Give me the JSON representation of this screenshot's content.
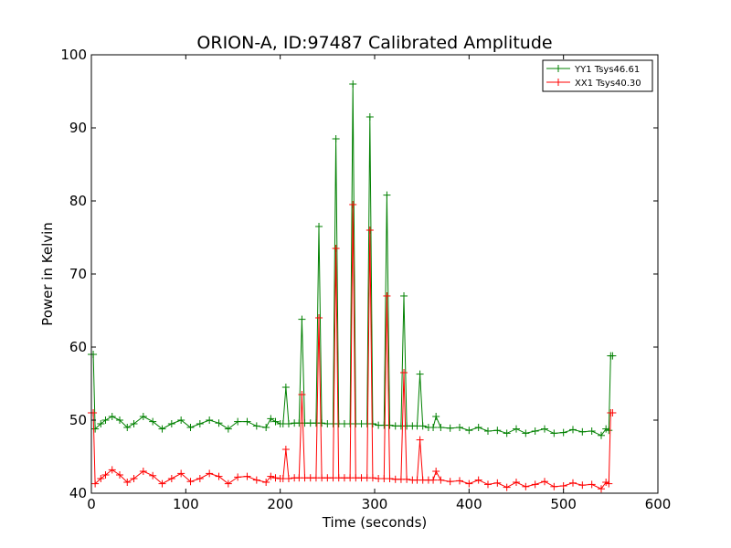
{
  "chart_data": {
    "type": "line",
    "title": "ORION-A, ID:97487 Calibrated Amplitude",
    "xlabel": "Time (seconds)",
    "ylabel": "Power in Kelvin",
    "xlim": [
      0,
      600
    ],
    "ylim": [
      40,
      100
    ],
    "xticks": [
      "0",
      "100",
      "200",
      "300",
      "400",
      "500",
      "600"
    ],
    "yticks": [
      "40",
      "50",
      "60",
      "70",
      "80",
      "90",
      "100"
    ],
    "grid": false,
    "legend_position": "top-right",
    "marker": "plus",
    "series": [
      {
        "name": "YY1 Tsys46.61",
        "color": "#008000",
        "x": [
          0,
          2,
          4,
          10,
          15,
          22,
          30,
          38,
          45,
          55,
          65,
          75,
          85,
          95,
          105,
          115,
          125,
          135,
          145,
          155,
          165,
          175,
          185,
          190,
          195,
          200,
          203,
          206,
          209,
          215,
          220,
          223,
          226,
          232,
          238,
          241,
          244,
          250,
          256,
          259,
          262,
          268,
          274,
          277,
          280,
          286,
          292,
          295,
          298,
          304,
          310,
          313,
          316,
          322,
          328,
          331,
          334,
          340,
          345,
          348,
          351,
          357,
          362,
          365,
          370,
          380,
          390,
          400,
          410,
          420,
          430,
          440,
          450,
          460,
          470,
          480,
          490,
          500,
          510,
          520,
          530,
          540,
          545,
          548,
          550,
          552
        ],
        "y": [
          59,
          59,
          48.8,
          49.5,
          50,
          50.5,
          50,
          49,
          49.5,
          50.5,
          49.8,
          48.8,
          49.5,
          50,
          49,
          49.5,
          50,
          49.6,
          48.8,
          49.8,
          49.8,
          49.2,
          49,
          50.2,
          49.8,
          49.5,
          49.5,
          54.5,
          49.5,
          49.6,
          49.6,
          63.8,
          49.6,
          49.6,
          49.6,
          76.5,
          49.6,
          49.5,
          49.5,
          88.5,
          49.5,
          49.5,
          49.5,
          96,
          49.5,
          49.5,
          49.5,
          91.5,
          49.5,
          49.3,
          49.3,
          80.8,
          49.3,
          49.2,
          49.2,
          67,
          49.2,
          49.2,
          49.2,
          56.3,
          49.2,
          49.0,
          49.0,
          50.5,
          49.0,
          48.9,
          49.0,
          48.6,
          49.0,
          48.5,
          48.6,
          48.2,
          48.8,
          48.2,
          48.5,
          48.8,
          48.2,
          48.3,
          48.7,
          48.4,
          48.5,
          47.9,
          48.8,
          48.6,
          58.8,
          58.8
        ]
      },
      {
        "name": "XX1 Tsys40.30",
        "color": "#ff0000",
        "x": [
          0,
          2,
          4,
          10,
          15,
          22,
          30,
          38,
          45,
          55,
          65,
          75,
          85,
          95,
          105,
          115,
          125,
          135,
          145,
          155,
          165,
          175,
          185,
          190,
          195,
          200,
          203,
          206,
          209,
          215,
          220,
          223,
          226,
          232,
          238,
          241,
          244,
          250,
          256,
          259,
          262,
          268,
          274,
          277,
          280,
          286,
          292,
          295,
          298,
          304,
          310,
          313,
          316,
          322,
          328,
          331,
          334,
          340,
          345,
          348,
          351,
          357,
          362,
          365,
          370,
          380,
          390,
          400,
          410,
          420,
          430,
          440,
          450,
          460,
          470,
          480,
          490,
          500,
          510,
          520,
          530,
          540,
          545,
          548,
          550,
          552
        ],
        "y": [
          51,
          51,
          41.3,
          42,
          42.5,
          43.2,
          42.5,
          41.5,
          42,
          43,
          42.4,
          41.3,
          42,
          42.7,
          41.6,
          42,
          42.7,
          42.3,
          41.3,
          42.2,
          42.3,
          41.8,
          41.5,
          42.3,
          42.1,
          42,
          42,
          46,
          42,
          42.1,
          42.1,
          53.5,
          42.1,
          42.1,
          42.1,
          64,
          42.1,
          42.1,
          42.1,
          73.5,
          42.1,
          42.1,
          42.1,
          79.5,
          42.1,
          42.1,
          42.1,
          76,
          42.1,
          42,
          42,
          67,
          42,
          41.9,
          41.9,
          56.5,
          41.9,
          41.8,
          41.8,
          47.3,
          41.8,
          41.8,
          41.8,
          43,
          41.8,
          41.6,
          41.7,
          41.3,
          41.8,
          41.2,
          41.4,
          40.8,
          41.5,
          40.9,
          41.2,
          41.6,
          40.9,
          41,
          41.4,
          41.1,
          41.2,
          40.6,
          41.5,
          41.3,
          51,
          51
        ]
      }
    ]
  }
}
